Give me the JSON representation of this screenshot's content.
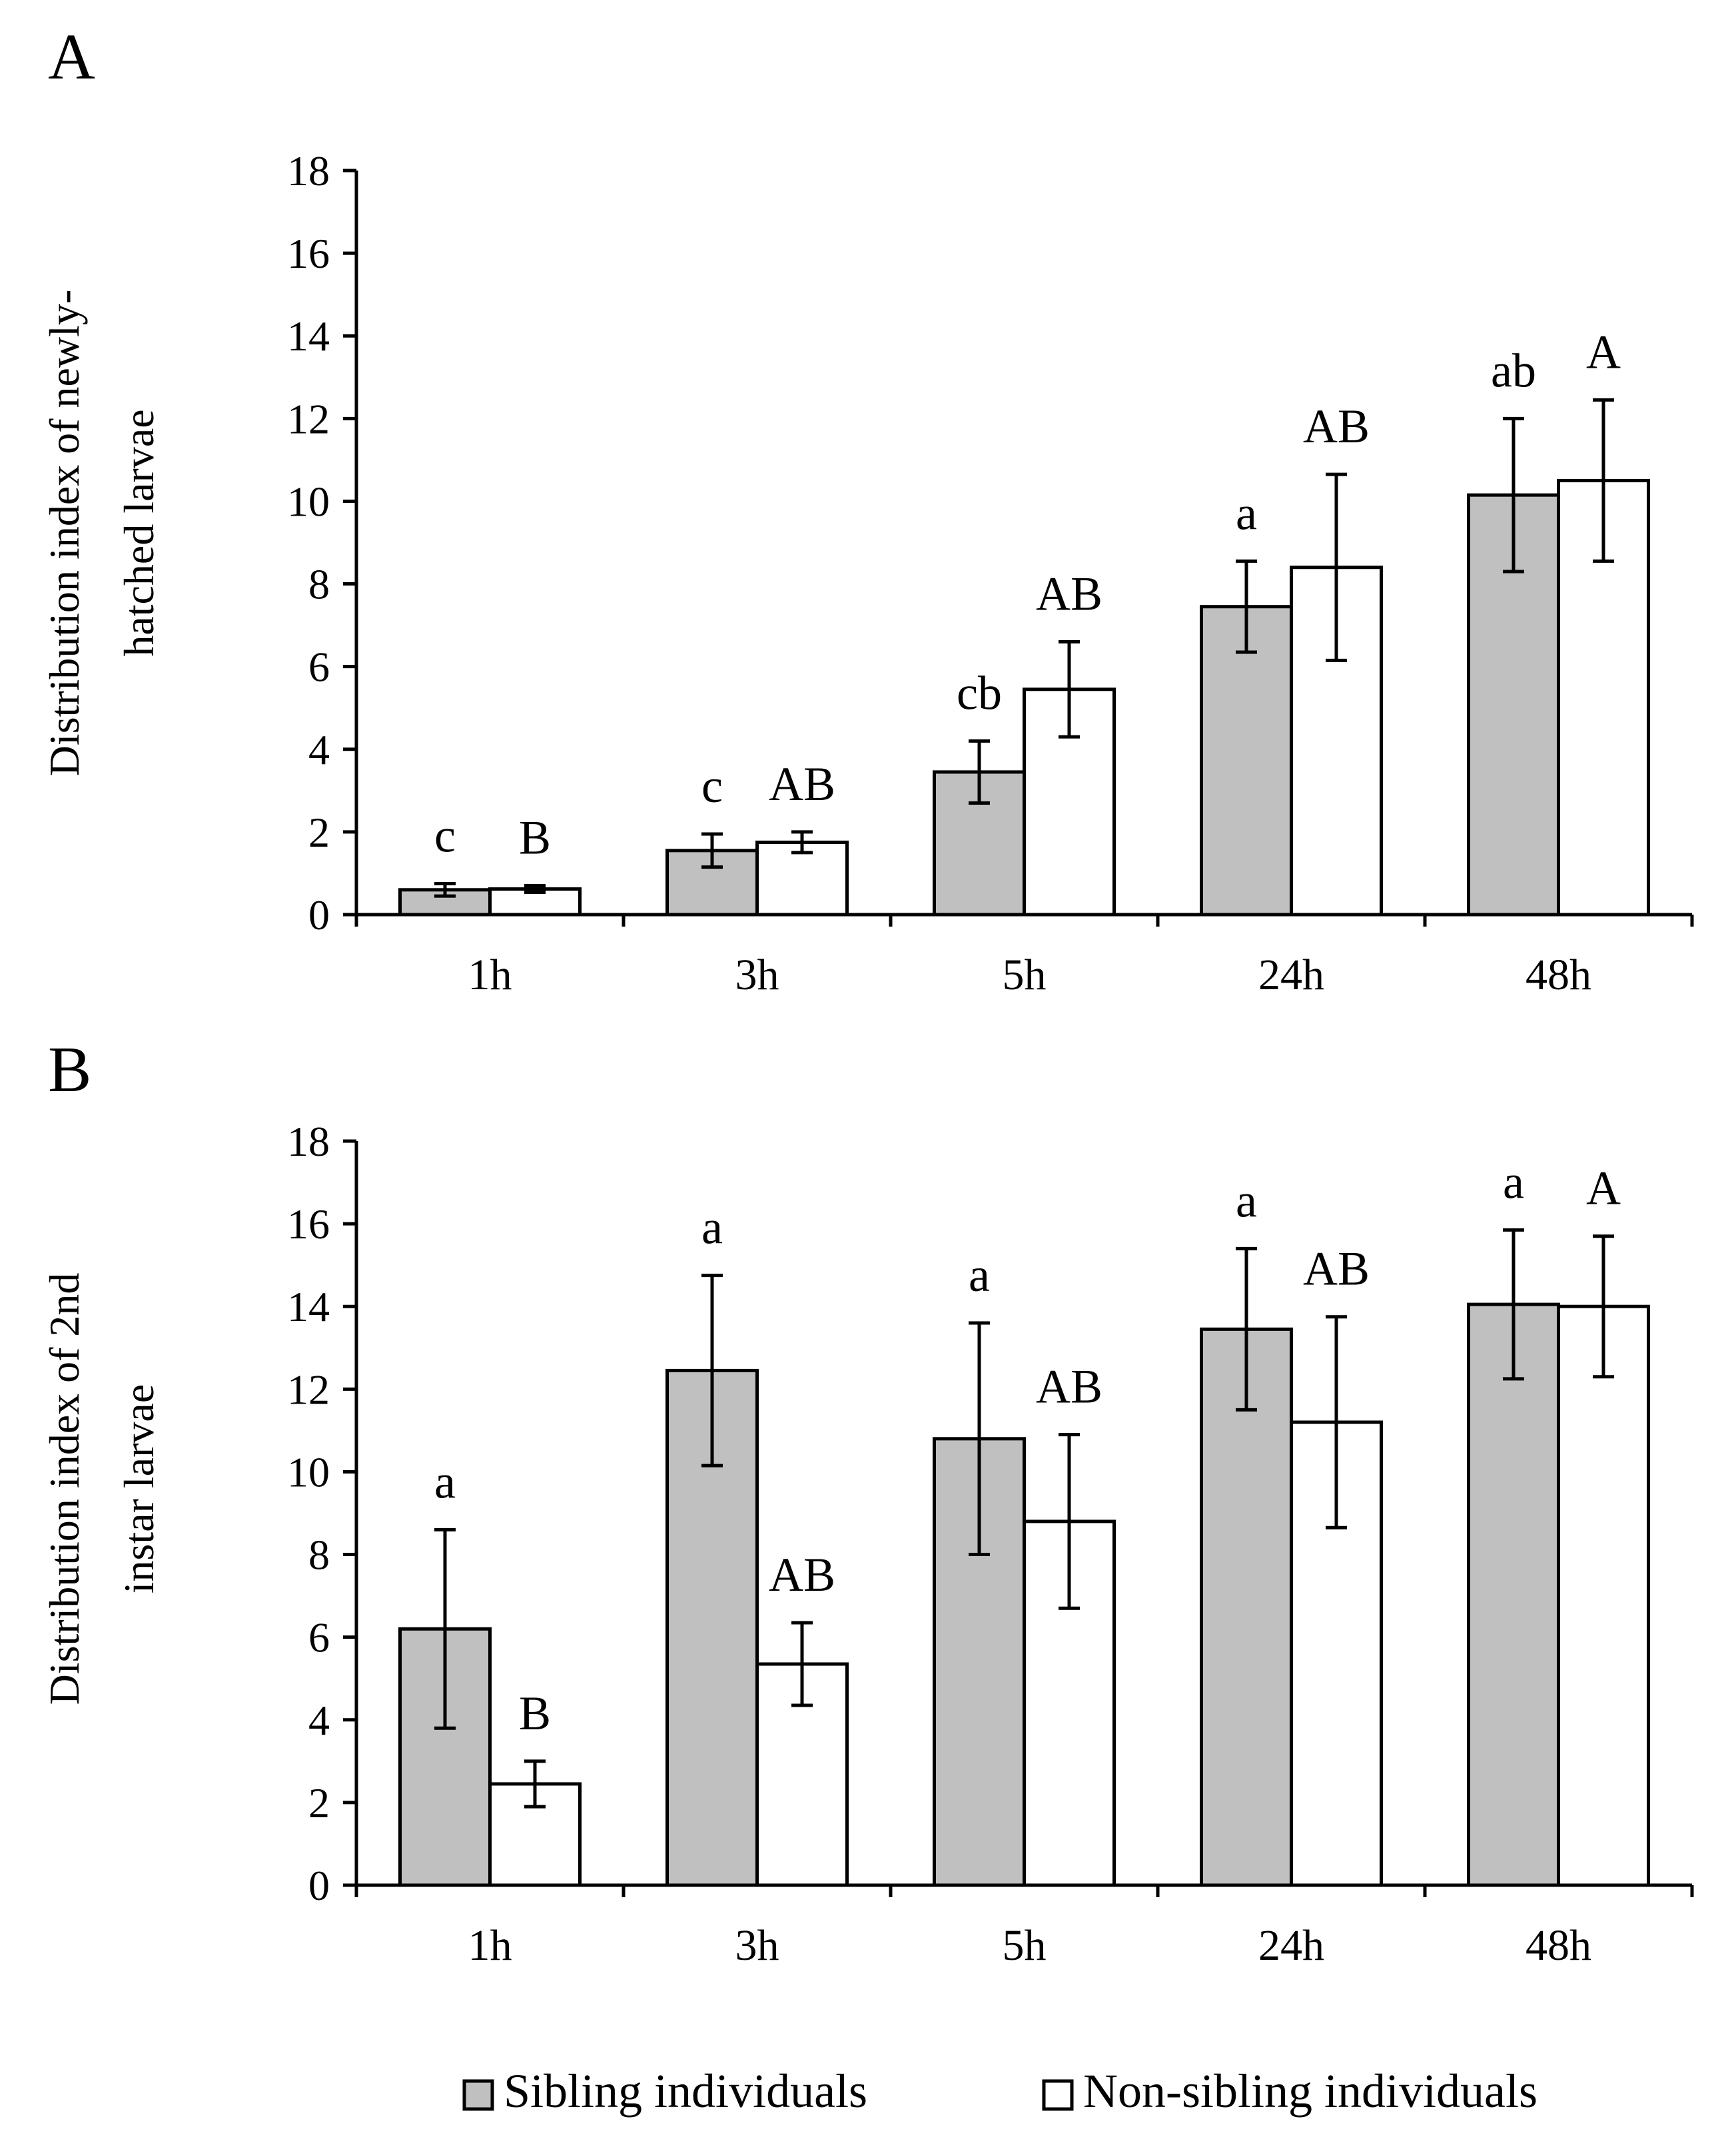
{
  "legend": {
    "sibling_label": "Sibling individuals",
    "non_sibling_label": "Non-sibling individuals",
    "placement": "bottom-center"
  },
  "colors": {
    "sibling_fill": "#c0c0c0",
    "non_sibling_fill": "#ffffff",
    "stroke": "#000000"
  },
  "chart_data": [
    {
      "type": "bar",
      "panel_label": "A",
      "title": "",
      "xlabel": "",
      "ylabel_lines": [
        "Distribution index of newly-",
        "hatched larvae"
      ],
      "categories": [
        "1h",
        "3h",
        "5h",
        "24h",
        "48h"
      ],
      "ylim": [
        0,
        18
      ],
      "yticks": [
        "0",
        "2",
        "4",
        "6",
        "8",
        "10",
        "12",
        "14",
        "16",
        "18"
      ],
      "grid": false,
      "series": [
        {
          "name": "Sibling individuals",
          "values": [
            0.6,
            1.55,
            3.45,
            7.45,
            10.15
          ],
          "errors": [
            0.15,
            0.4,
            0.75,
            1.1,
            1.85
          ],
          "letters": [
            "c",
            "c",
            "cb",
            "a",
            "ab"
          ]
        },
        {
          "name": "Non-sibling individuals",
          "values": [
            0.62,
            1.75,
            5.45,
            8.4,
            10.5
          ],
          "errors": [
            0.08,
            0.25,
            1.15,
            2.25,
            1.95
          ],
          "letters": [
            "B",
            "AB",
            "AB",
            "AB",
            "A"
          ]
        }
      ]
    },
    {
      "type": "bar",
      "panel_label": "B",
      "title": "",
      "xlabel": "",
      "ylabel_lines": [
        "Distribution index of 2nd",
        "instar larvae"
      ],
      "categories": [
        "1h",
        "3h",
        "5h",
        "24h",
        "48h"
      ],
      "ylim": [
        0,
        18
      ],
      "yticks": [
        "0",
        "2",
        "4",
        "6",
        "8",
        "10",
        "12",
        "14",
        "16",
        "18"
      ],
      "grid": false,
      "series": [
        {
          "name": "Sibling individuals",
          "values": [
            6.2,
            12.45,
            10.8,
            13.45,
            14.05
          ],
          "errors": [
            2.4,
            2.3,
            2.8,
            1.95,
            1.8
          ],
          "letters": [
            "a",
            "a",
            "a",
            "a",
            "a"
          ]
        },
        {
          "name": "Non-sibling individuals",
          "values": [
            2.45,
            5.35,
            8.8,
            11.2,
            14.0
          ],
          "errors": [
            0.55,
            1.0,
            2.1,
            2.55,
            1.7
          ],
          "letters": [
            "B",
            "AB",
            "AB",
            "AB",
            "A"
          ]
        }
      ]
    }
  ]
}
